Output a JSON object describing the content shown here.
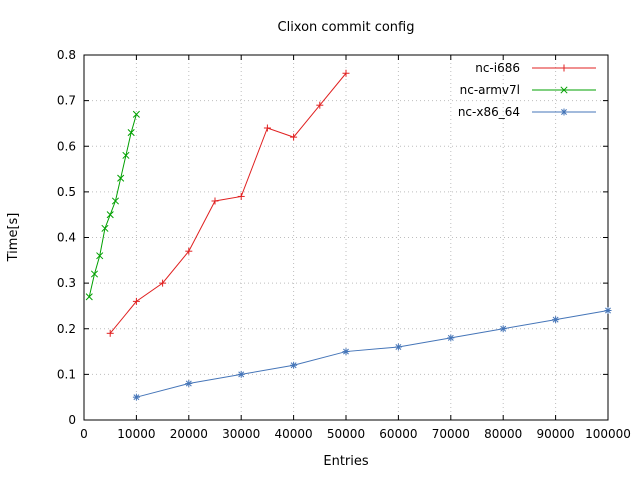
{
  "chart_data": {
    "type": "line",
    "title": "Clixon commit config",
    "xlabel": "Entries",
    "ylabel": "Time[s]",
    "xlim": [
      0,
      100000
    ],
    "ylim": [
      0,
      0.8
    ],
    "grid": true,
    "legend_position": "top-right-inside",
    "xticks": {
      "values": [
        0,
        10000,
        20000,
        30000,
        40000,
        50000,
        60000,
        70000,
        80000,
        90000,
        100000
      ],
      "labels": [
        "0",
        "10000",
        "20000",
        "30000",
        "40000",
        "50000",
        "60000",
        "70000",
        "80000",
        "90000",
        "100000"
      ]
    },
    "yticks": {
      "values": [
        0,
        0.1,
        0.2,
        0.3,
        0.4,
        0.5,
        0.6,
        0.7,
        0.8
      ],
      "labels": [
        "0",
        "0.1",
        "0.2",
        "0.3",
        "0.4",
        "0.5",
        "0.6",
        "0.7",
        "0.8"
      ]
    },
    "series": [
      {
        "name": "nc-i686",
        "color": "#e02020",
        "marker": "plus",
        "x": [
          5000,
          10000,
          15000,
          20000,
          25000,
          30000,
          35000,
          40000,
          45000,
          50000
        ],
        "y": [
          0.19,
          0.26,
          0.3,
          0.37,
          0.48,
          0.49,
          0.64,
          0.62,
          0.69,
          0.76
        ]
      },
      {
        "name": "nc-armv7l",
        "color": "#00a000",
        "marker": "x",
        "x": [
          1000,
          2000,
          3000,
          4000,
          5000,
          6000,
          7000,
          8000,
          9000,
          10000
        ],
        "y": [
          0.27,
          0.32,
          0.36,
          0.42,
          0.45,
          0.48,
          0.53,
          0.58,
          0.63,
          0.67
        ]
      },
      {
        "name": "nc-x86_64",
        "color": "#4575b8",
        "marker": "star",
        "x": [
          10000,
          20000,
          30000,
          40000,
          50000,
          60000,
          70000,
          80000,
          90000,
          100000
        ],
        "y": [
          0.05,
          0.08,
          0.1,
          0.12,
          0.15,
          0.16,
          0.18,
          0.2,
          0.22,
          0.24
        ]
      }
    ]
  }
}
